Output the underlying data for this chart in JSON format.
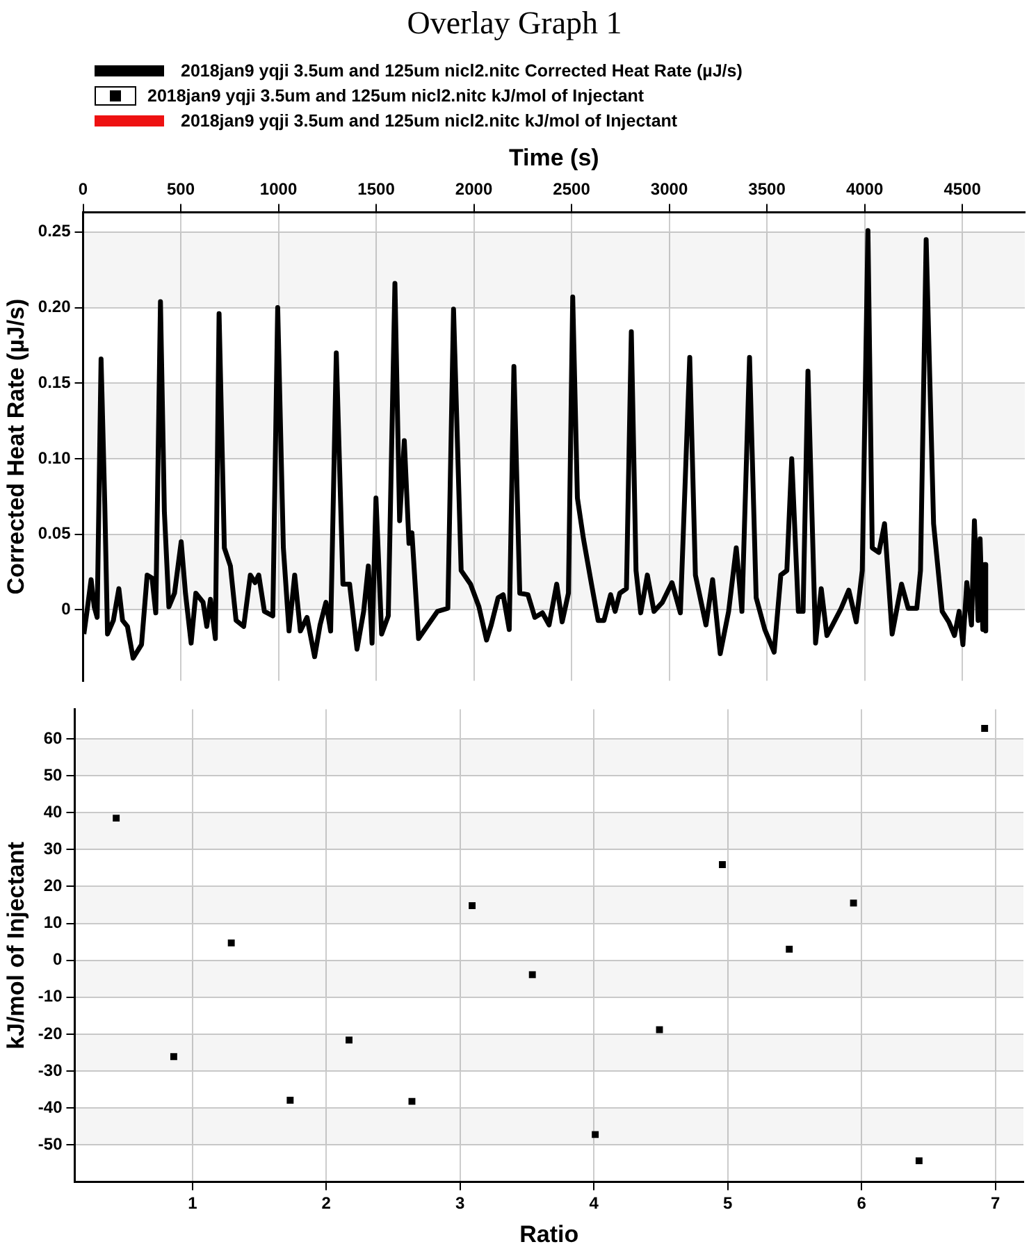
{
  "chart_data": [
    {
      "type": "line",
      "title": "Overlay Graph 1",
      "xlabel": "Time (s)",
      "ylabel": "Corrected Heat Rate (µJ/s)",
      "xlim": [
        0,
        4820
      ],
      "ylim": [
        -0.047,
        0.263
      ],
      "xticks": [
        0,
        500,
        1000,
        1500,
        2000,
        2500,
        3000,
        3500,
        4000,
        4500
      ],
      "yticks": [
        0,
        0.05,
        {
          "value": 0.1,
          "label": "0.10"
        },
        0.15,
        {
          "value": 0.2,
          "label": "0.20"
        },
        0.25
      ],
      "grid": true,
      "legend": "top",
      "marker": "none",
      "line_style": "solid",
      "series": [
        {
          "name": "2018jan9 yqji 3.5um and 125um nicl2.nitc Corrected Heat Rate (µJ/s)",
          "color": "#000000",
          "x": [
            4,
            21,
            41,
            57,
            72,
            92,
            111,
            125,
            155,
            183,
            202,
            227,
            256,
            299,
            328,
            353,
            372,
            396,
            416,
            439,
            468,
            502,
            524,
            553,
            577,
            614,
            633,
            652,
            677,
            696,
            723,
            754,
            783,
            822,
            856,
            880,
            899,
            928,
            971,
            996,
            1025,
            1054,
            1083,
            1112,
            1146,
            1185,
            1213,
            1243,
            1267,
            1296,
            1330,
            1364,
            1402,
            1436,
            1460,
            1479,
            1499,
            1528,
            1562,
            1596,
            1620,
            1644,
            1668,
            1683,
            1717,
            1760,
            1814,
            1867,
            1896,
            1935,
            1983,
            2026,
            2065,
            2089,
            2124,
            2150,
            2181,
            2205,
            2235,
            2277,
            2312,
            2351,
            2385,
            2424,
            2452,
            2484,
            2506,
            2530,
            2561,
            2602,
            2636,
            2666,
            2700,
            2723,
            2747,
            2781,
            2806,
            2830,
            2854,
            2888,
            2922,
            2965,
            3014,
            3057,
            3105,
            3134,
            3188,
            3222,
            3261,
            3304,
            3343,
            3372,
            3411,
            3445,
            3489,
            3537,
            3571,
            3602,
            3627,
            3661,
            3685,
            3710,
            3749,
            3778,
            3807,
            3836,
            3880,
            3919,
            3957,
            3988,
            4017,
            4039,
            4073,
            4102,
            4141,
            4189,
            4223,
            4267,
            4286,
            4315,
            4353,
            4397,
            4431,
            4460,
            4484,
            4503,
            4523,
            4547,
            4562,
            4581,
            4591,
            4605,
            4615,
            4620
          ],
          "values": [
            -0.016,
            0,
            0.02,
            0.002,
            -0.005,
            0.166,
            0.07,
            -0.016,
            -0.007,
            0.014,
            -0.007,
            -0.011,
            -0.032,
            -0.023,
            0.023,
            0.021,
            -0.002,
            0.204,
            0.065,
            0.002,
            0.011,
            0.045,
            0.011,
            -0.022,
            0.011,
            0.005,
            -0.011,
            0.007,
            -0.019,
            0.196,
            0.041,
            0.029,
            -0.007,
            -0.011,
            0.023,
            0.018,
            0.023,
            -0.001,
            -0.004,
            0.2,
            0.041,
            -0.014,
            0.023,
            -0.014,
            -0.005,
            -0.031,
            -0.01,
            0.005,
            -0.014,
            0.17,
            0.017,
            0.017,
            -0.026,
            -0.001,
            0.029,
            -0.022,
            0.074,
            -0.016,
            -0.004,
            0.216,
            0.059,
            0.112,
            0.044,
            0.051,
            -0.019,
            -0.011,
            -0.001,
            0.001,
            0.199,
            0.026,
            0.017,
            0.002,
            -0.02,
            -0.01,
            0.008,
            0.01,
            -0.013,
            0.161,
            0.011,
            0.01,
            -0.005,
            -0.002,
            -0.01,
            0.017,
            -0.008,
            0.011,
            0.207,
            0.074,
            0.047,
            0.017,
            -0.007,
            -0.007,
            0.01,
            -0.001,
            0.011,
            0.014,
            0.184,
            0.026,
            -0.002,
            0.023,
            -0.001,
            0.005,
            0.018,
            -0.002,
            0.167,
            0.023,
            -0.01,
            0.02,
            -0.029,
            -0.001,
            0.041,
            -0.001,
            0.167,
            0.008,
            -0.013,
            -0.028,
            0.023,
            0.026,
            0.1,
            -0.001,
            -0.001,
            0.158,
            -0.022,
            0.014,
            -0.017,
            -0.01,
            0.001,
            0.013,
            -0.008,
            0.026,
            0.251,
            0.041,
            0.038,
            0.057,
            -0.016,
            0.017,
            0.001,
            0.001,
            0.026,
            0.245,
            0.057,
            -0.001,
            -0.008,
            -0.017,
            -0.001,
            -0.023,
            0.018,
            -0.01,
            0.059,
            -0.007,
            0.047,
            -0.013,
            0.03,
            -0.014
          ]
        }
      ]
    },
    {
      "type": "scatter",
      "xlabel": "Ratio",
      "ylabel": "kJ/mol of Injectant",
      "xlim": [
        0.12,
        7.21
      ],
      "ylim": [
        -60,
        68
      ],
      "xticks": [
        1,
        2,
        3,
        4,
        5,
        6,
        7
      ],
      "yticks": [
        -50,
        -40,
        -30,
        -20,
        -10,
        0,
        10,
        20,
        30,
        40,
        50,
        60
      ],
      "grid": true,
      "legend": "top",
      "marker": "square",
      "series": [
        {
          "name": "2018jan9 yqji 3.5um and 125um nicl2.nitc kJ/mol of Injectant",
          "color": "#000000",
          "x": [
            0.43,
            0.86,
            1.29,
            1.73,
            2.17,
            2.64,
            3.09,
            3.54,
            4.01,
            4.49,
            4.96,
            5.46,
            5.94,
            6.43,
            6.92
          ],
          "values": [
            38.5,
            -26.1,
            4.7,
            -37.9,
            -21.6,
            -38.2,
            14.8,
            -3.9,
            -47.2,
            -18.8,
            25.9,
            3,
            15.5,
            -54.3,
            62.8
          ]
        },
        {
          "name": "2018jan9 yqji 3.5um and 125um nicl2.nitc kJ/mol of Injectant",
          "color": "#ee1111",
          "type": "line"
        }
      ]
    }
  ]
}
